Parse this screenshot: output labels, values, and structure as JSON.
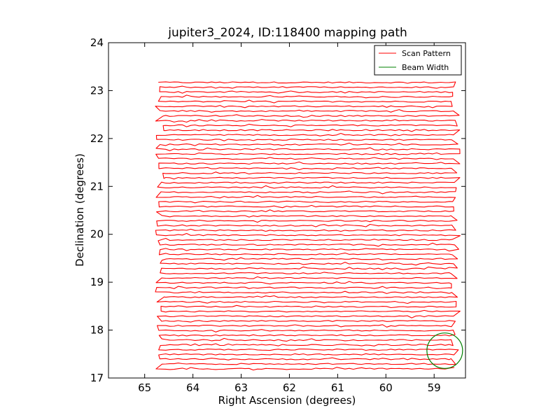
{
  "chart_data": {
    "type": "line",
    "title": "jupiter3_2024, ID:118400 mapping path",
    "xlabel": "Right Ascension (degrees)",
    "ylabel": "Declination (degrees)",
    "xlim": [
      65.75,
      58.35
    ],
    "ylim": [
      17,
      24
    ],
    "x_inverted": true,
    "xticks": [
      65,
      64,
      63,
      62,
      61,
      60,
      59
    ],
    "yticks": [
      17,
      18,
      19,
      20,
      21,
      22,
      23,
      24
    ],
    "grid": false,
    "legend_position": "top-right",
    "series": [
      {
        "name": "Scan Pattern",
        "color": "#ff0000",
        "pattern": "raster",
        "ra_range": [
          64.65,
          58.6
        ],
        "dec_range": [
          17.2,
          23.17
        ],
        "row_spacing": 0.0996
      },
      {
        "name": "Beam Width",
        "color": "#008000",
        "shape": "circle",
        "center_ra": 58.78,
        "center_dec": 17.57,
        "radius_deg": 0.37
      }
    ]
  }
}
